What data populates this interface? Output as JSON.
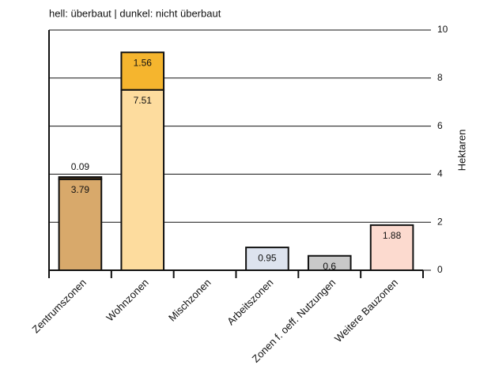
{
  "chart_data": {
    "type": "stacked_bar",
    "subtitle": "hell: überbaut | dunkel: nicht überbaut",
    "categories": [
      "Zentrumszonen",
      "Wohnzonen",
      "Mischzonen",
      "Arbeitszonen",
      "Zonen f. oeff. Nutzungen",
      "Weitere Bauzonen"
    ],
    "series": [
      {
        "values": [
          3.79,
          7.51,
          null,
          0.95,
          0.6,
          1.88
        ],
        "colors": [
          "#d8a96b",
          "#fddc9e",
          null,
          "#dde3ee",
          "#c9c9c9",
          "#fcdacf"
        ]
      },
      {
        "values": [
          0.09,
          1.56,
          null,
          null,
          null,
          null
        ],
        "colors": [
          "#5a3a16",
          "#f5b52e",
          null,
          null,
          null,
          null
        ]
      }
    ],
    "y_axis_label": "Hektaren",
    "y_axis_side": "right",
    "ylim": [
      0,
      10
    ],
    "yticks": [
      0,
      2,
      4,
      6,
      8,
      10
    ],
    "grid": true
  }
}
